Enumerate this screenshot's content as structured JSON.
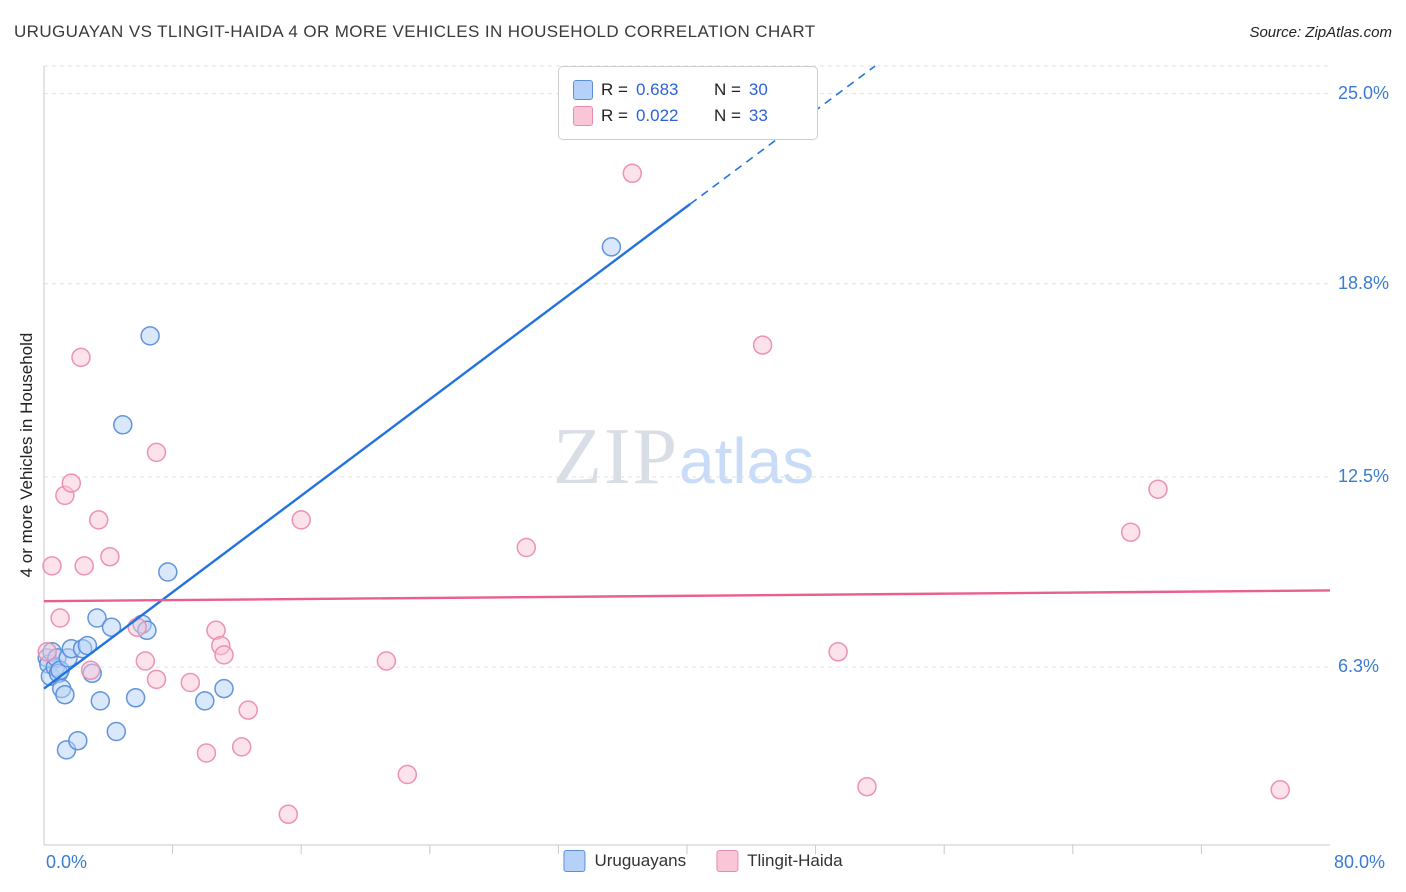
{
  "header": {
    "title": "URUGUAYAN VS TLINGIT-HAIDA 4 OR MORE VEHICLES IN HOUSEHOLD CORRELATION CHART",
    "source": "Source: ZipAtlas.com"
  },
  "watermark": {
    "part1": "ZIP",
    "part2": "atlas"
  },
  "axis": {
    "y_label": "4 or more Vehicles in Household",
    "x_min_label": "0.0%",
    "x_max_label": "80.0%"
  },
  "legend_box": {
    "rows": [
      {
        "r_label": "R =",
        "r_value": "0.683",
        "n_label": "N =",
        "n_value": "30"
      },
      {
        "r_label": "R =",
        "r_value": "0.022",
        "n_label": "N =",
        "n_value": "33"
      }
    ]
  },
  "chart_data": {
    "type": "scatter",
    "title": "URUGUAYAN VS TLINGIT-HAIDA 4 OR MORE VEHICLES IN HOUSEHOLD CORRELATION CHART",
    "xlabel": "",
    "ylabel": "4 or more Vehicles in Household",
    "x_range": [
      0,
      80
    ],
    "y_range": [
      0.5,
      25.9
    ],
    "x_axis_labels": [
      "0.0%",
      "80.0%"
    ],
    "y_tick_values": [
      6.3,
      12.5,
      18.8,
      25.0
    ],
    "y_tick_labels": [
      "6.3%",
      "12.5%",
      "18.8%",
      "25.0%"
    ],
    "x_tick_step": 8,
    "grid": "dashed-horizontal",
    "legend_position": "bottom-center",
    "series": [
      {
        "name": "Uruguayans",
        "R": 0.683,
        "N": 30,
        "fill": "#b6d1f7",
        "stroke": "#5b8fd9",
        "points": [
          [
            0.2,
            6.6
          ],
          [
            0.3,
            6.4
          ],
          [
            0.4,
            6.0
          ],
          [
            0.5,
            6.8
          ],
          [
            0.7,
            6.3
          ],
          [
            0.8,
            6.6
          ],
          [
            0.9,
            6.1
          ],
          [
            1.0,
            6.2
          ],
          [
            1.1,
            5.6
          ],
          [
            1.3,
            5.4
          ],
          [
            1.4,
            3.6
          ],
          [
            1.5,
            6.6
          ],
          [
            1.7,
            6.9
          ],
          [
            2.1,
            3.9
          ],
          [
            2.4,
            6.9
          ],
          [
            2.7,
            7.0
          ],
          [
            3.0,
            6.1
          ],
          [
            3.3,
            7.9
          ],
          [
            3.5,
            5.2
          ],
          [
            4.2,
            7.6
          ],
          [
            4.5,
            4.2
          ],
          [
            4.9,
            14.2
          ],
          [
            5.7,
            5.3
          ],
          [
            6.1,
            7.7
          ],
          [
            6.4,
            7.5
          ],
          [
            6.6,
            17.1
          ],
          [
            7.7,
            9.4
          ],
          [
            10.0,
            5.2
          ],
          [
            11.2,
            5.6
          ],
          [
            35.3,
            20.0
          ]
        ]
      },
      {
        "name": "Tlingit-Haida",
        "R": 0.022,
        "N": 33,
        "fill": "#f9c6d8",
        "stroke": "#ec8cb0",
        "points": [
          [
            0.2,
            6.8
          ],
          [
            0.5,
            9.6
          ],
          [
            1.0,
            7.9
          ],
          [
            1.3,
            11.9
          ],
          [
            1.7,
            12.3
          ],
          [
            2.3,
            16.4
          ],
          [
            2.5,
            9.6
          ],
          [
            2.9,
            6.2
          ],
          [
            3.4,
            11.1
          ],
          [
            4.1,
            9.9
          ],
          [
            5.8,
            7.6
          ],
          [
            6.3,
            6.5
          ],
          [
            7.0,
            13.3
          ],
          [
            7.0,
            5.9
          ],
          [
            9.1,
            5.8
          ],
          [
            10.1,
            3.5
          ],
          [
            10.7,
            7.5
          ],
          [
            11.0,
            7.0
          ],
          [
            11.2,
            6.7
          ],
          [
            12.3,
            3.7
          ],
          [
            12.7,
            4.9
          ],
          [
            15.2,
            1.5
          ],
          [
            16.0,
            11.1
          ],
          [
            21.3,
            6.5
          ],
          [
            22.6,
            2.8
          ],
          [
            30.0,
            10.2
          ],
          [
            36.6,
            22.4
          ],
          [
            44.7,
            16.8
          ],
          [
            49.4,
            6.8
          ],
          [
            51.2,
            2.4
          ],
          [
            67.6,
            10.7
          ],
          [
            69.3,
            12.1
          ],
          [
            76.9,
            2.3
          ]
        ]
      }
    ],
    "trend_lines": [
      {
        "series": "Uruguayans",
        "color": "#2273dd",
        "solid": [
          [
            0,
            5.6
          ],
          [
            40.2,
            21.4
          ]
        ],
        "dashed": [
          [
            40.2,
            21.4
          ],
          [
            51.7,
            25.9
          ]
        ]
      },
      {
        "series": "Tlingit-Haida",
        "color": "#ea5f90",
        "solid": [
          [
            0,
            8.45
          ],
          [
            80,
            8.8
          ]
        ]
      }
    ]
  }
}
